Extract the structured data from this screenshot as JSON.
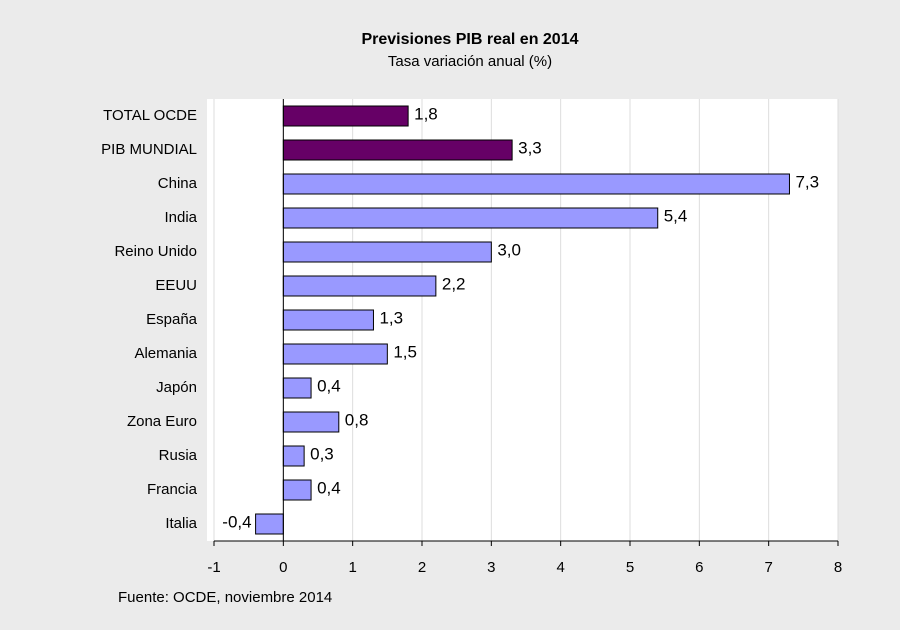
{
  "chart_data": {
    "type": "bar",
    "orientation": "horizontal",
    "title": "Previsiones PIB real en 2014",
    "subtitle": "Tasa variación anual (%)",
    "source": "Fuente: OCDE, noviembre 2014",
    "categories": [
      "TOTAL OCDE",
      "PIB MUNDIAL",
      "China",
      "India",
      "Reino Unido",
      "EEUU",
      "España",
      "Alemania",
      "Japón",
      "Zona Euro",
      "Rusia",
      "Francia",
      "Italia"
    ],
    "values": [
      1.8,
      3.3,
      7.3,
      5.4,
      3.0,
      2.2,
      1.3,
      1.5,
      0.4,
      0.8,
      0.3,
      0.4,
      -0.4
    ],
    "value_labels": [
      "1,8",
      "3,3",
      "7,3",
      "5,4",
      "3,0",
      "2,2",
      "1,3",
      "1,5",
      "0,4",
      "0,8",
      "0,3",
      "0,4",
      "-0,4"
    ],
    "colors": [
      "#660066",
      "#660066",
      "#9999ff",
      "#9999ff",
      "#9999ff",
      "#9999ff",
      "#9999ff",
      "#9999ff",
      "#9999ff",
      "#9999ff",
      "#9999ff",
      "#9999ff",
      "#9999ff"
    ],
    "xlim": [
      -1,
      8
    ],
    "xticks": [
      -1,
      0,
      1,
      2,
      3,
      4,
      5,
      6,
      7,
      8
    ],
    "grid": true
  }
}
